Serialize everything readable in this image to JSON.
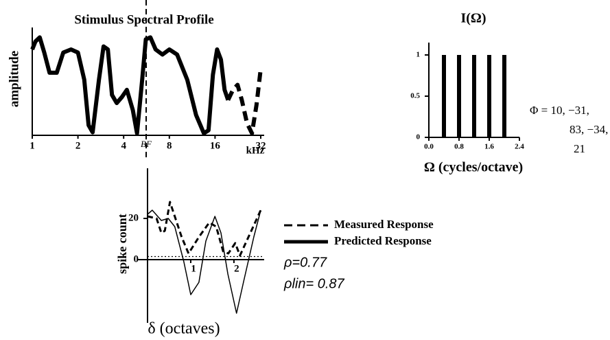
{
  "chart_data": [
    {
      "type": "line",
      "title": "Stimulus Spectral Profile",
      "y_label": "amplitude",
      "x_label": "kHz",
      "annotation": "BF",
      "xscale": "log",
      "xlim": [
        1,
        32
      ],
      "ylim": [
        0,
        1
      ],
      "xticks": [
        1,
        2,
        4,
        8,
        16,
        32
      ],
      "series": [
        {
          "color": "#000000",
          "style": "solid",
          "x": [
            1,
            1.05,
            1.12,
            1.2,
            1.3,
            1.45,
            1.6,
            1.8,
            2.0,
            2.2,
            2.35,
            2.5,
            2.75,
            2.95,
            3.15,
            3.35,
            3.6,
            3.9,
            4.2,
            4.6,
            4.9,
            5.3,
            5.6,
            6.0,
            6.5,
            7.2,
            8.0,
            9.0,
            10.5,
            12,
            13.5,
            14.5,
            15.5,
            16.5,
            17.5,
            18.5,
            19.5
          ],
          "values": [
            0.85,
            0.93,
            0.97,
            0.82,
            0.62,
            0.62,
            0.82,
            0.85,
            0.82,
            0.55,
            0.1,
            0.03,
            0.55,
            0.88,
            0.85,
            0.4,
            0.32,
            0.38,
            0.45,
            0.25,
            0.02,
            0.55,
            0.95,
            0.97,
            0.85,
            0.8,
            0.85,
            0.8,
            0.55,
            0.2,
            0.02,
            0.05,
            0.6,
            0.85,
            0.75,
            0.45,
            0.35
          ]
        },
        {
          "color": "#000000",
          "style": "dashed",
          "x": [
            19.5,
            21,
            22.5,
            24,
            26,
            28,
            30,
            32
          ],
          "values": [
            0.35,
            0.45,
            0.5,
            0.35,
            0.12,
            0.02,
            0.3,
            0.66
          ]
        }
      ]
    },
    {
      "type": "bar",
      "title": "I(Ω)",
      "x_label": "Ω  (cycles/octave)",
      "annotation": [
        "Φ = 10, −31,",
        "83, −34,",
        "21"
      ],
      "x": [
        0.4,
        0.8,
        1.2,
        1.6,
        2.0
      ],
      "values": [
        1,
        1,
        1,
        1,
        1
      ],
      "color": "#000000",
      "xlim": [
        0,
        2.4
      ],
      "ylim": [
        0,
        1.1
      ],
      "xticks": [
        {
          "value": 0,
          "label": "0.0"
        },
        0.8,
        1.6,
        2.4
      ],
      "yticks": [
        0,
        0.5,
        1
      ]
    },
    {
      "type": "line",
      "y_label": "spike count",
      "x_label": "δ  (octaves)",
      "annotations": [
        "ρ=0.77",
        "ρlin= 0.87"
      ],
      "xlim": [
        0,
        2.7
      ],
      "ylim": [
        -30,
        40
      ],
      "xticks": [
        1,
        2
      ],
      "yticks": [
        0,
        20
      ],
      "reference_line": 1.5,
      "series": [
        {
          "name": "Measured Response",
          "color": "#000000",
          "style": "dashed",
          "x": [
            0,
            0.21,
            0.32,
            0.4,
            0.52,
            0.63,
            0.79,
            0.95,
            1.19,
            1.43,
            1.59,
            1.75,
            1.87,
            2.03,
            2.14,
            2.38,
            2.62
          ],
          "values": [
            21,
            20,
            13,
            14,
            28,
            21,
            11,
            3,
            11,
            18,
            16,
            4,
            3,
            8,
            2,
            13,
            24
          ]
        },
        {
          "name": "Predicted Response",
          "color": "#000000",
          "style": "solid",
          "x": [
            0,
            0.11,
            0.32,
            0.48,
            0.63,
            0.84,
            1.0,
            1.19,
            1.35,
            1.56,
            1.7,
            1.86,
            2.06,
            2.22,
            2.46,
            2.62
          ],
          "values": [
            22,
            24,
            19,
            20,
            16,
            -1,
            -17,
            -11,
            9,
            21,
            13,
            -7,
            -26,
            -11,
            11,
            24
          ]
        }
      ]
    }
  ]
}
